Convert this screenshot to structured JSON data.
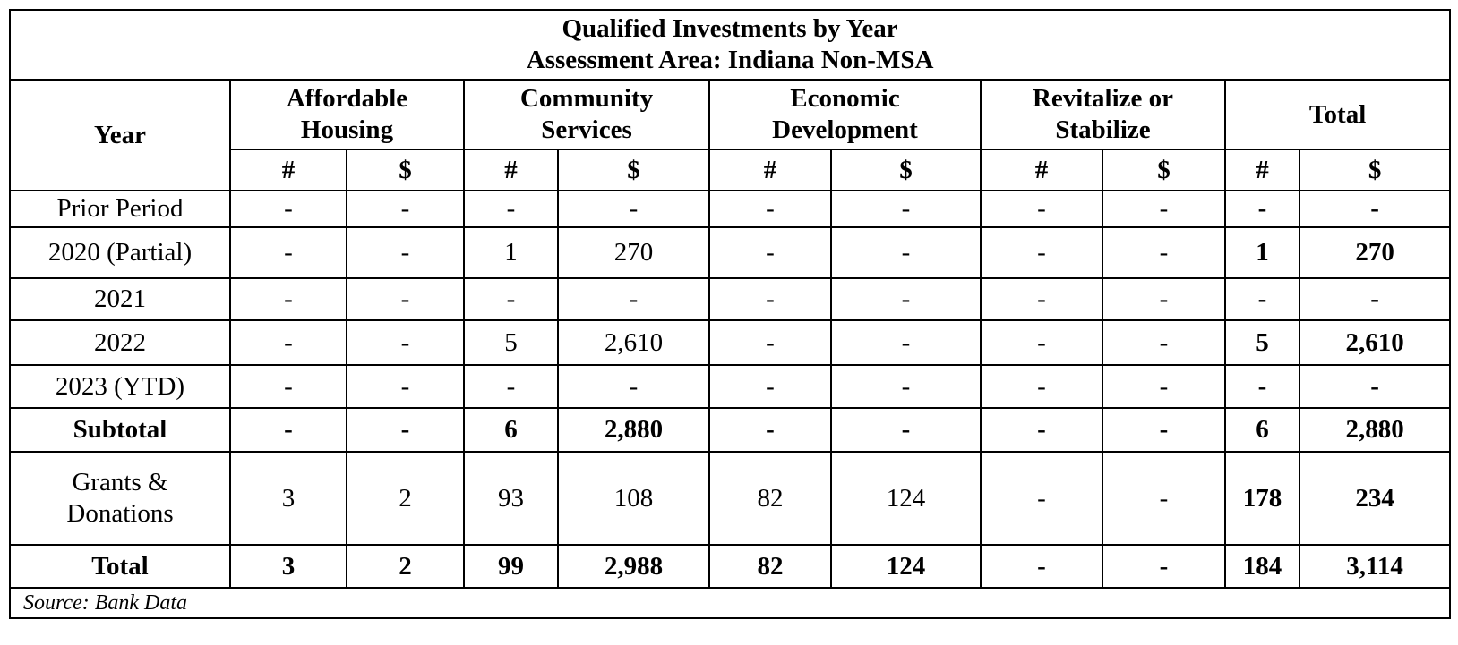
{
  "title": {
    "line1": "Qualified Investments by Year",
    "line2": "Assessment Area: Indiana Non-MSA"
  },
  "headers": {
    "year": "Year",
    "groups": [
      {
        "line1": "Affordable",
        "line2": "Housing"
      },
      {
        "line1": "Community",
        "line2": "Services"
      },
      {
        "line1": "Economic",
        "line2": "Development"
      },
      {
        "line1": "Revitalize or",
        "line2": "Stabilize"
      },
      {
        "line1": "Total",
        "line2": ""
      }
    ],
    "count_symbol": "#",
    "amount_symbol": "$"
  },
  "rows": [
    {
      "label": "Prior Period",
      "cells": [
        "-",
        "-",
        "-",
        "-",
        "-",
        "-",
        "-",
        "-",
        "-",
        "-"
      ]
    },
    {
      "label": "2020 (Partial)",
      "cells": [
        "-",
        "-",
        "1",
        "270",
        "-",
        "-",
        "-",
        "-",
        "1",
        "270"
      ]
    },
    {
      "label": "2021",
      "cells": [
        "-",
        "-",
        "-",
        "-",
        "-",
        "-",
        "-",
        "-",
        "-",
        "-"
      ]
    },
    {
      "label": "2022",
      "cells": [
        "-",
        "-",
        "5",
        "2,610",
        "-",
        "-",
        "-",
        "-",
        "5",
        "2,610"
      ]
    },
    {
      "label": "2023 (YTD)",
      "cells": [
        "-",
        "-",
        "-",
        "-",
        "-",
        "-",
        "-",
        "-",
        "-",
        "-"
      ]
    },
    {
      "label": "Subtotal",
      "cells": [
        "-",
        "-",
        "6",
        "2,880",
        "-",
        "-",
        "-",
        "-",
        "6",
        "2,880"
      ]
    },
    {
      "label_line1": "Grants &",
      "label_line2": "Donations",
      "cells": [
        "3",
        "2",
        "93",
        "108",
        "82",
        "124",
        "-",
        "-",
        "178",
        "234"
      ]
    },
    {
      "label": "Total",
      "cells": [
        "3",
        "2",
        "99",
        "2,988",
        "82",
        "124",
        "-",
        "-",
        "184",
        "3,114"
      ]
    }
  ],
  "source": "Source: Bank Data"
}
